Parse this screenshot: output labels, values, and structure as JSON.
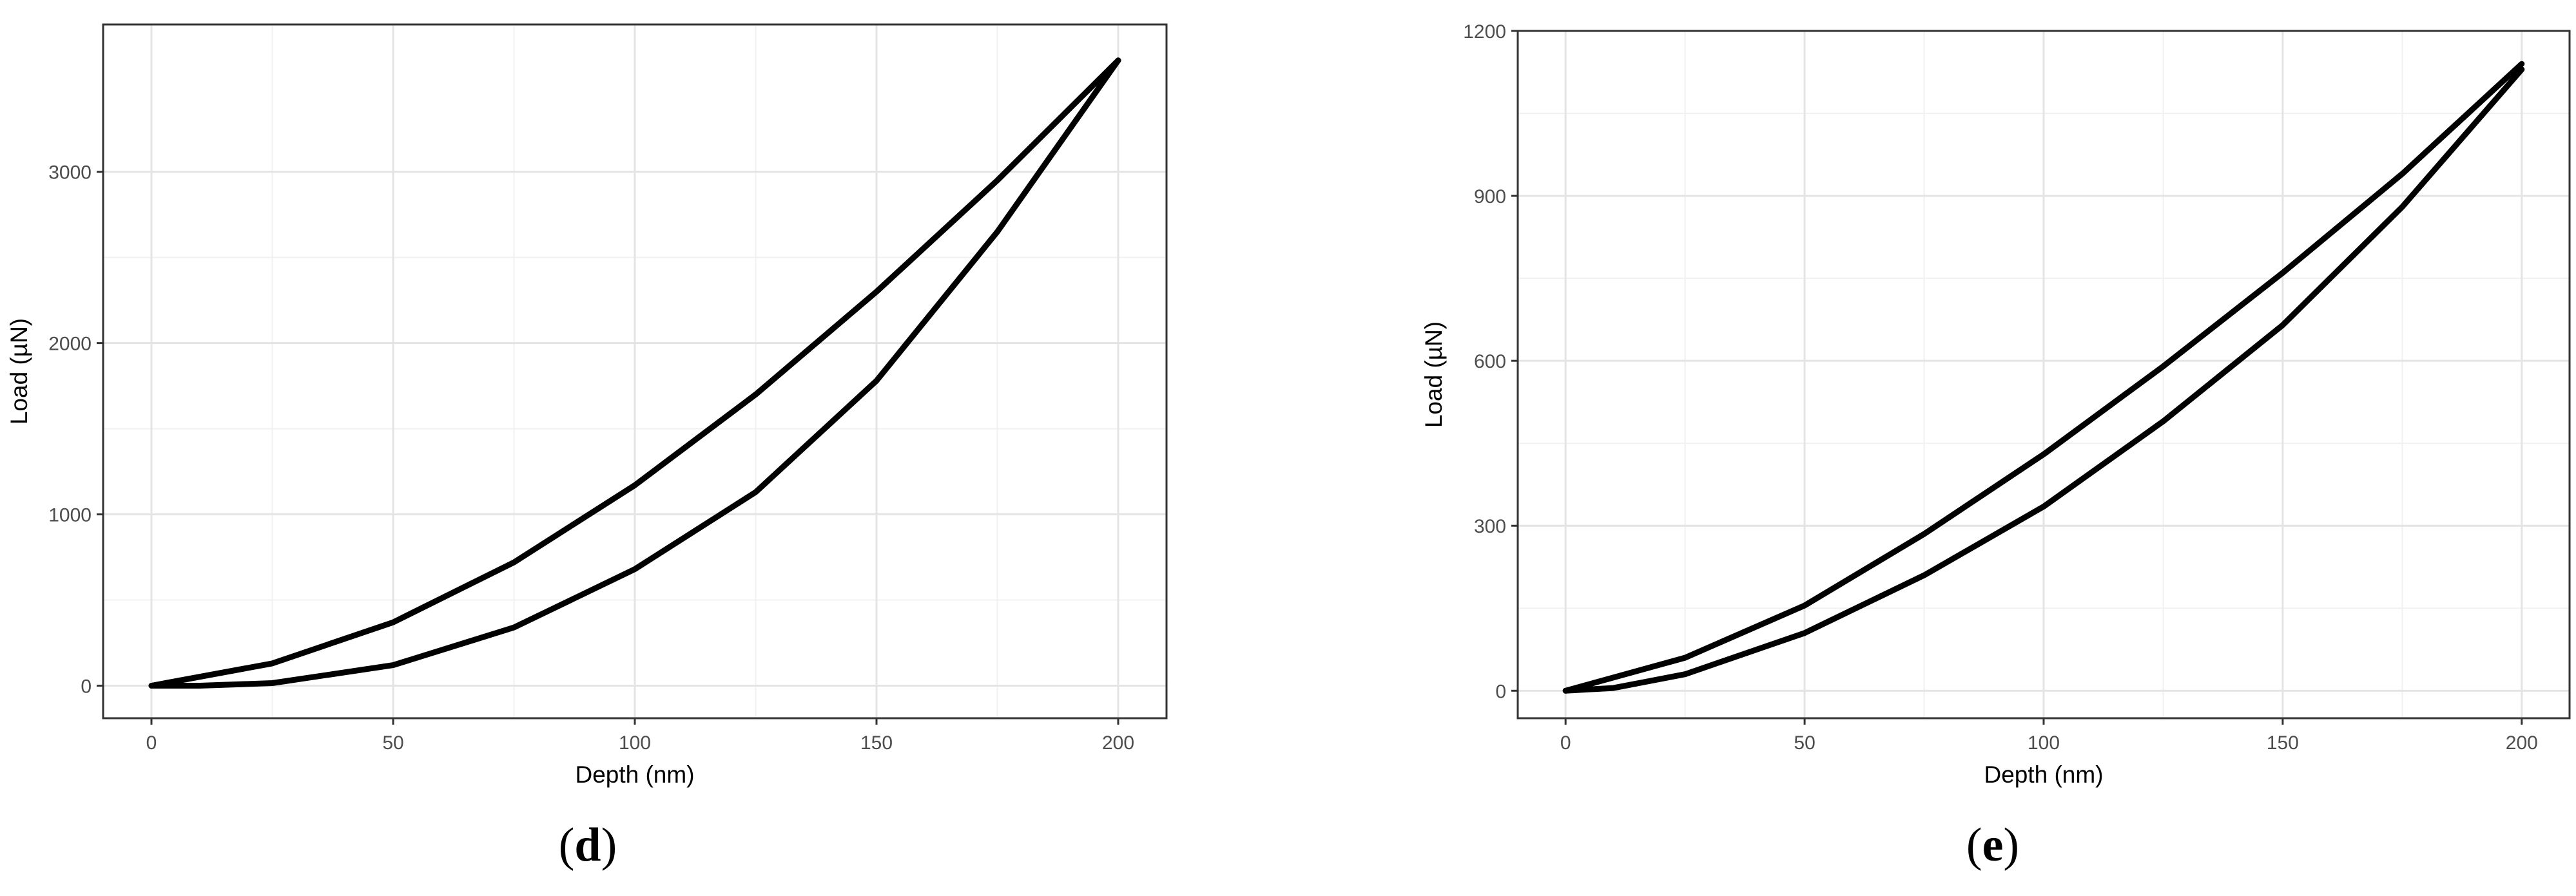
{
  "chart_data": [
    {
      "type": "line",
      "panel_label": "d",
      "xlabel": "Depth (nm)",
      "ylabel": "Load (µN)",
      "xlim": [
        -10,
        210
      ],
      "ylim": [
        -190,
        3860
      ],
      "xticks": [
        0,
        50,
        100,
        150,
        200
      ],
      "yticks": [
        0,
        1000,
        2000,
        3000
      ],
      "grid": true,
      "series": [
        {
          "x": [
            0,
            25,
            50,
            75,
            100,
            125,
            150,
            175,
            200
          ],
          "y": [
            0,
            130,
            370,
            720,
            1170,
            1700,
            2300,
            2950,
            3650
          ]
        },
        {
          "x": [
            200,
            175,
            150,
            125,
            100,
            75,
            50,
            25,
            10,
            0
          ],
          "y": [
            3650,
            2650,
            1780,
            1130,
            680,
            340,
            120,
            15,
            0,
            0
          ]
        }
      ]
    },
    {
      "type": "line",
      "panel_label": "e",
      "xlabel": "Depth (nm)",
      "ylabel": "Load (µN)",
      "xlim": [
        -10,
        210
      ],
      "ylim": [
        -50,
        1200
      ],
      "xticks": [
        0,
        50,
        100,
        150,
        200
      ],
      "yticks": [
        0,
        300,
        600,
        900,
        1200
      ],
      "grid": true,
      "series": [
        {
          "x": [
            0,
            25,
            50,
            75,
            100,
            125,
            150,
            175,
            200
          ],
          "y": [
            0,
            60,
            155,
            285,
            430,
            590,
            760,
            940,
            1140
          ]
        },
        {
          "x": [
            200,
            175,
            150,
            125,
            100,
            75,
            50,
            25,
            10,
            0
          ],
          "y": [
            1130,
            880,
            665,
            490,
            335,
            210,
            105,
            30,
            5,
            0
          ]
        }
      ]
    }
  ]
}
